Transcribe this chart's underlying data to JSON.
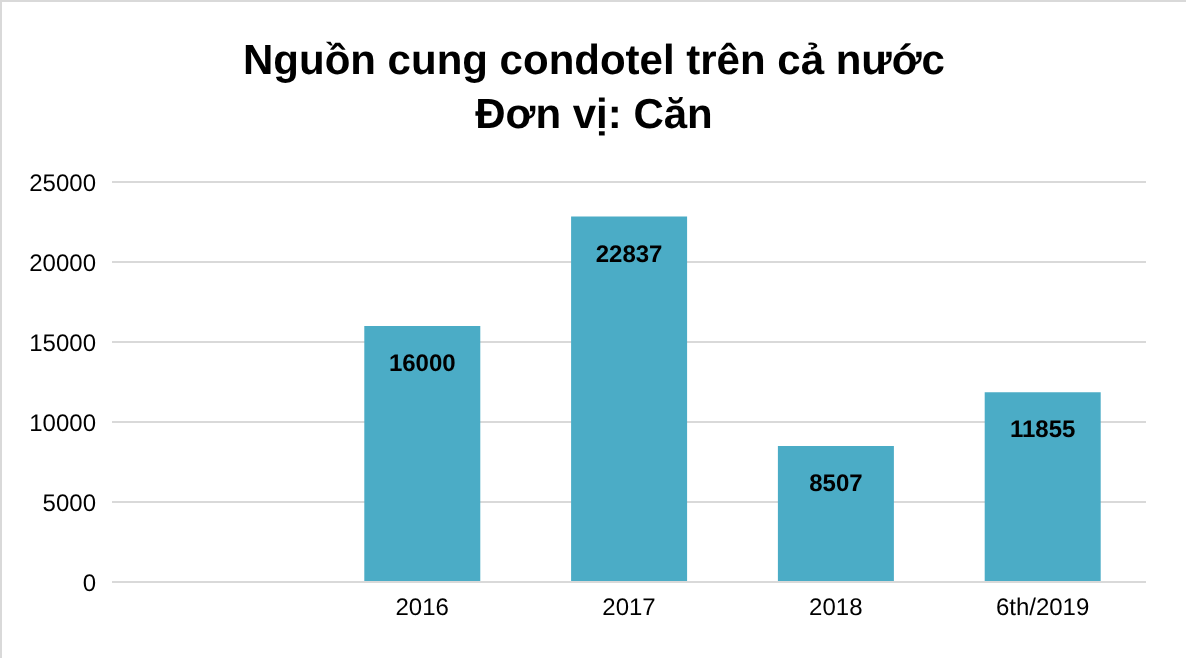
{
  "chart_data": {
    "type": "bar",
    "title": "Nguồn cung condotel trên cả nước",
    "subtitle": "Đơn vị: Căn",
    "categories": [
      null,
      "2016",
      "2017",
      "2018",
      "6th/2019"
    ],
    "values": [
      null,
      16000,
      22837,
      8507,
      11855
    ],
    "color": "#4bacc6",
    "ylim": [
      0,
      25000
    ],
    "yticks": [
      0,
      5000,
      10000,
      15000,
      20000,
      25000
    ],
    "grid": "y",
    "data_labels": true
  }
}
